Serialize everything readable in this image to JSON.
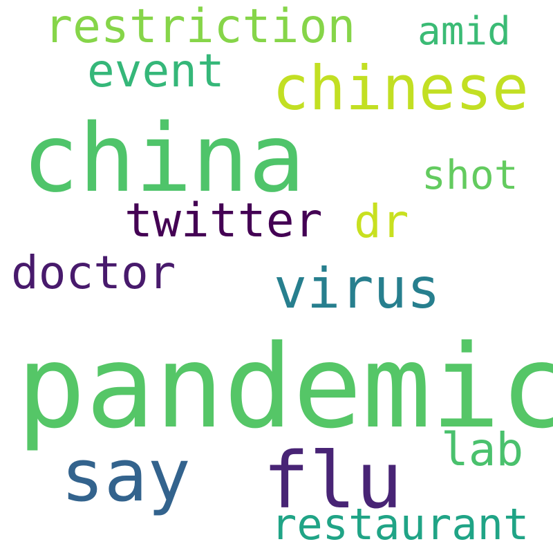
{
  "words": [
    {
      "id": "pandemic",
      "text": "pandemic",
      "color": "#55c667"
    },
    {
      "id": "china",
      "text": "china",
      "color": "#4fc46a"
    },
    {
      "id": "restriction",
      "text": "restriction",
      "color": "#86d549"
    },
    {
      "id": "chinese",
      "text": "chinese",
      "color": "#c2df23"
    },
    {
      "id": "amid",
      "text": "amid",
      "color": "#3bbb75"
    },
    {
      "id": "event",
      "text": "event",
      "color": "#35b779"
    },
    {
      "id": "shot",
      "text": "shot",
      "color": "#63cb5f"
    },
    {
      "id": "twitter",
      "text": "twitter",
      "color": "#440154"
    },
    {
      "id": "dr",
      "text": "dr",
      "color": "#c8e020"
    },
    {
      "id": "doctor",
      "text": "doctor",
      "color": "#481a6c"
    },
    {
      "id": "virus",
      "text": "virus",
      "color": "#277f8e"
    },
    {
      "id": "say",
      "text": "say",
      "color": "#33638d"
    },
    {
      "id": "flu",
      "text": "flu",
      "color": "#482475"
    },
    {
      "id": "lab",
      "text": "lab",
      "color": "#4ac16d"
    },
    {
      "id": "restaurant",
      "text": "restaurant",
      "color": "#20a486"
    }
  ]
}
